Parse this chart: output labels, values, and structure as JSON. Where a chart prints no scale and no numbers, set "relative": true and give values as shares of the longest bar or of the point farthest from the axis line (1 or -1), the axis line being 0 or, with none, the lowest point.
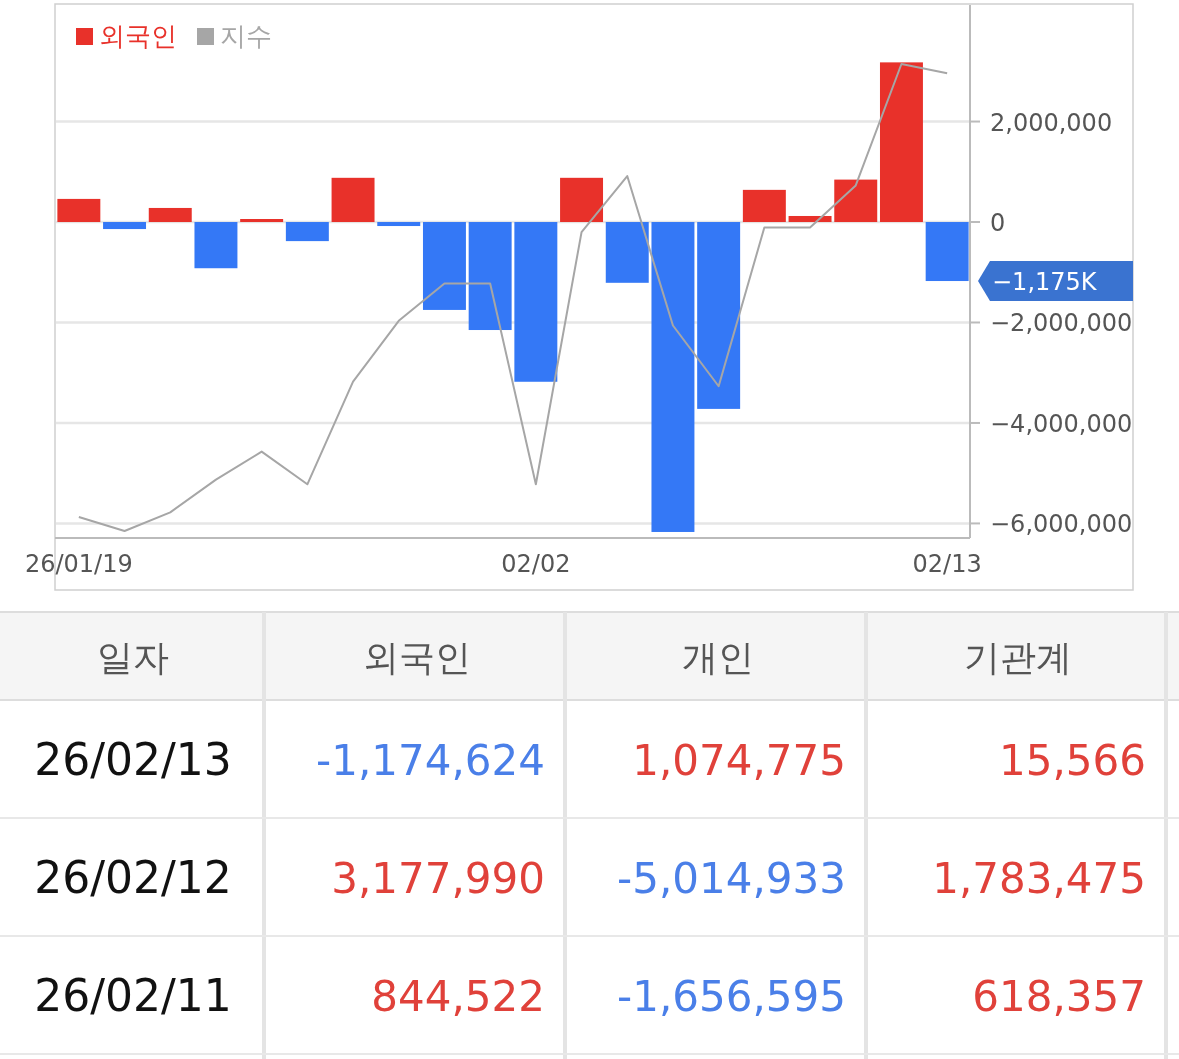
{
  "chart_data": [
    {
      "type": "bar",
      "categories": [
        "26/01/19",
        null,
        null,
        null,
        null,
        null,
        null,
        null,
        null,
        null,
        "02/02",
        null,
        null,
        null,
        null,
        null,
        null,
        null,
        null,
        "02/13"
      ],
      "series": [
        {
          "name": "외국인",
          "color": "#e8312a",
          "colors": [
            "#e8312a",
            "#3478f6",
            "#e8312a",
            "#3478f6",
            "#e8312a",
            "#3478f6",
            "#e8312a",
            "#3478f6",
            "#3478f6",
            "#3478f6",
            "#3478f6",
            "#e8312a",
            "#3478f6",
            "#3478f6",
            "#3478f6",
            "#e8312a",
            "#e8312a",
            "#e8312a",
            "#e8312a",
            "#3478f6"
          ],
          "values": [
            460000,
            -140000,
            280000,
            -920000,
            60000,
            -380000,
            880000,
            -80000,
            -1750000,
            -2150000,
            -3180000,
            880000,
            -1210000,
            -6170000,
            -3720000,
            640000,
            120000,
            844522,
            3177990,
            -1174624
          ]
        }
      ],
      "ylim": [
        -6290000,
        4320000
      ],
      "yticks": [
        {
          "value": 2000000,
          "label": "2,000,000"
        },
        0,
        {
          "value": -2000000,
          "label": "−2,000,000"
        },
        {
          "value": -4000000,
          "label": "−4,000,000"
        },
        {
          "value": -6000000,
          "label": "−6,000,000"
        }
      ],
      "grid": "y",
      "legend": "top left",
      "annotations": [
        "−1,175K"
      ]
    },
    {
      "type": "line",
      "relative": true,
      "categories": [
        null,
        null,
        null,
        null,
        null,
        null,
        null,
        null,
        null,
        null,
        null,
        null,
        null,
        null,
        null,
        null,
        null,
        null,
        null,
        null
      ],
      "series": [
        {
          "name": "지수",
          "color": "#a6a6a6",
          "values": [
            0.03,
            0,
            0.04,
            0.11,
            0.17,
            0.1,
            0.32,
            0.45,
            0.53,
            0.53,
            0.1,
            0.64,
            0.76,
            0.44,
            0.31,
            0.65,
            0.65,
            0.74,
            1,
            0.98
          ]
        }
      ],
      "legend": "top left"
    },
    {
      "type": "other",
      "categories": [
        "일자",
        "외국인",
        "개인",
        "기관계"
      ],
      "cell_labels": [
        [
          "26/02/13",
          "-1,174,624",
          "1,074,775",
          "15,566"
        ],
        [
          "26/02/12",
          "3,177,990",
          "-5,014,933",
          "1,783,475"
        ],
        [
          "26/02/11",
          "844,522",
          "-1,656,595",
          "618,357"
        ]
      ]
    }
  ]
}
